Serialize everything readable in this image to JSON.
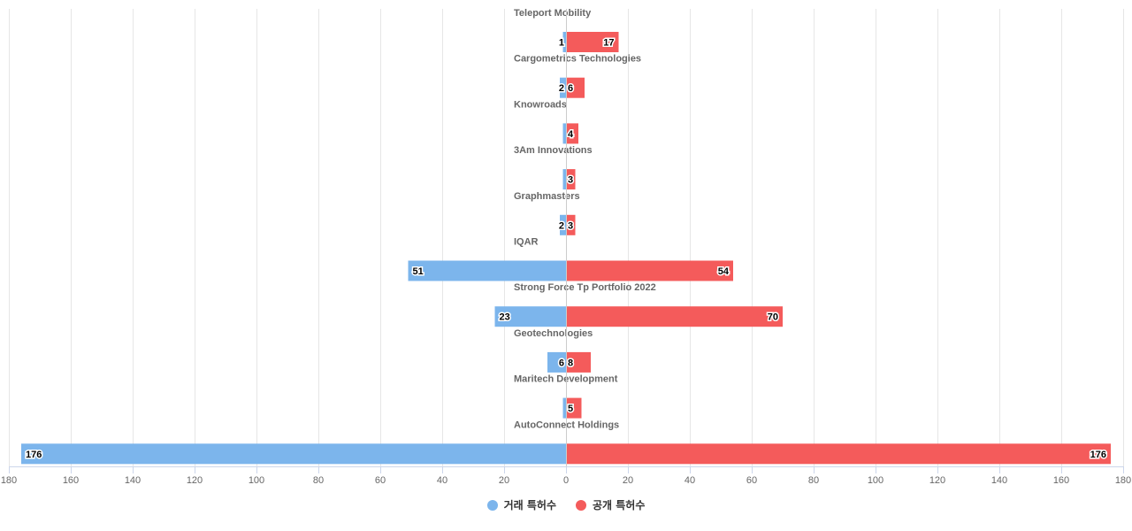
{
  "chart_data": {
    "type": "bar",
    "orientation": "horizontal-diverging",
    "categories": [
      "Teleport Mobility",
      "Cargometrics Technologies",
      "Knowroads",
      "3Am Innovations",
      "Graphmasters",
      "IQAR",
      "Strong Force Tp Portfolio 2022",
      "Geotechnologies",
      "Maritech Development",
      "AutoConnect Holdings"
    ],
    "series": [
      {
        "name": "거래 특허수",
        "color": "#7cb5ec",
        "values": [
          1,
          2,
          1,
          1,
          2,
          51,
          23,
          6,
          1,
          176
        ],
        "labels": [
          "1",
          "2",
          "",
          "",
          "2",
          "51",
          "23",
          "6",
          "",
          "176"
        ]
      },
      {
        "name": "공개 특허수",
        "color": "#f45b5b",
        "values": [
          17,
          6,
          4,
          3,
          3,
          54,
          70,
          8,
          5,
          176
        ],
        "labels": [
          "17",
          "6",
          "4",
          "3",
          "3",
          "54",
          "70",
          "8",
          "5",
          "176"
        ]
      }
    ],
    "xlim": [
      -180,
      180
    ],
    "xticks": [
      -180,
      -160,
      -140,
      -120,
      -100,
      -80,
      -60,
      -40,
      -20,
      0,
      20,
      40,
      60,
      80,
      100,
      120,
      140,
      160,
      180
    ],
    "xtick_labels": [
      "180",
      "160",
      "140",
      "120",
      "100",
      "80",
      "60",
      "40",
      "20",
      "0",
      "20",
      "40",
      "60",
      "80",
      "100",
      "120",
      "140",
      "160",
      "180"
    ],
    "grid": true,
    "legend_position": "bottom-center",
    "title": "",
    "xlabel": "",
    "ylabel": ""
  }
}
